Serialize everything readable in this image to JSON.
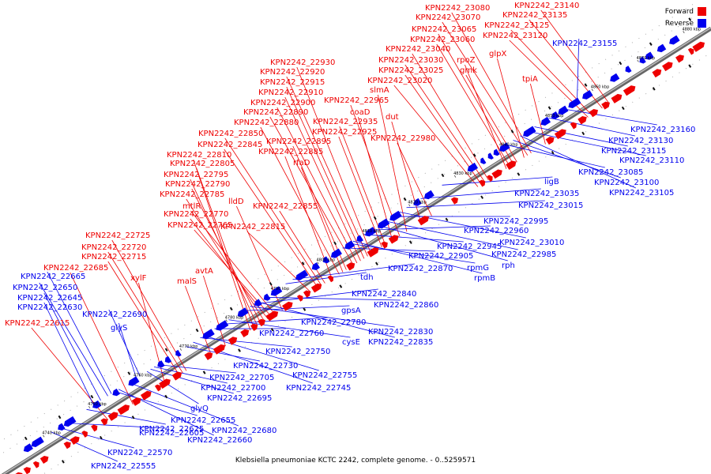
{
  "caption": "Klebsiella pneumoniae KCTC 2242, complete genome. - 0..5259571",
  "legend": [
    {
      "label": "Forward",
      "color": "#ee0000"
    },
    {
      "label": "Reverse",
      "color": "#0000ee"
    }
  ],
  "colors": {
    "forward": "#ee0000",
    "reverse": "#0000ee",
    "backbone": "#888888"
  },
  "scale_labels": [
    "4740 kbp",
    "4750 kbp",
    "4760 kbp",
    "4770 kbp",
    "4780 kbp",
    "4790 kbp",
    "4800 kbp",
    "4810 kbp",
    "4820 kbp",
    "4830 kbp",
    "4840 kbp",
    "4850 kbp",
    "4860 kbp",
    "4870 kbp",
    "4880 kbp"
  ],
  "forward_genes": [
    "KPN2242_22615",
    "KPN2242_22685",
    "KPN2242_22715",
    "KPN2242_22720",
    "KPN2242_22725",
    "xylF",
    "malS",
    "avtA",
    "KPN2242_22765",
    "KPN2242_22770",
    "mtlR",
    "KPN2242_22785",
    "KPN2242_22790",
    "KPN2242_22795",
    "lldD",
    "KPN2242_22805",
    "KPN2242_22810",
    "KPN2242_22815",
    "KPN2242_22845",
    "KPN2242_22850",
    "KPN2242_22855",
    "KPN2242_22880",
    "KPN2242_22885",
    "rfaD",
    "KPN2242_22890",
    "KPN2242_22895",
    "KPN2242_22900",
    "KPN2242_22910",
    "KPN2242_22915",
    "KPN2242_22920",
    "KPN2242_22925",
    "KPN2242_22930",
    "KPN2242_22935",
    "coaD",
    "KPN2242_22965",
    "slmA",
    "dut",
    "KPN2242_22980",
    "KPN2242_23020",
    "KPN2242_23025",
    "KPN2242_23030",
    "KPN2242_23040",
    "gmk",
    "rpoZ",
    "KPN2242_23060",
    "KPN2242_23065",
    "glpX",
    "KPN2242_23070",
    "KPN2242_23080",
    "tpiA",
    "KPN2242_23120",
    "KPN2242_23125",
    "KPN2242_23135",
    "KPN2242_23140"
  ],
  "reverse_genes": [
    "KPN2242_22555",
    "KPN2242_22570",
    "KPN2242_22605",
    "KPN2242_22625",
    "KPN2242_22630",
    "KPN2242_22645",
    "KPN2242_22650",
    "KPN2242_22655",
    "KPN2242_22660",
    "KPN2242_22665",
    "KPN2242_22680",
    "glyS",
    "KPN2242_22690",
    "glyQ",
    "KPN2242_22695",
    "KPN2242_22700",
    "KPN2242_22705",
    "KPN2242_22730",
    "KPN2242_22745",
    "KPN2242_22750",
    "KPN2242_22755",
    "KPN2242_22760",
    "KPN2242_22780",
    "cysE",
    "gpsA",
    "KPN2242_22830",
    "KPN2242_22835",
    "KPN2242_22840",
    "KPN2242_22860",
    "tdh",
    "KPN2242_22870",
    "rpmG",
    "rpmB",
    "KPN2242_22905",
    "KPN2242_22945",
    "KPN2242_22960",
    "rph",
    "KPN2242_22985",
    "KPN2242_22995",
    "KPN2242_23010",
    "KPN2242_23015",
    "KPN2242_23035",
    "ligB",
    "KPN2242_23085",
    "KPN2242_23100",
    "KPN2242_23105",
    "KPN2242_23110",
    "KPN2242_23115",
    "KPN2242_23130",
    "KPN2242_23155",
    "KPN2242_23160"
  ]
}
